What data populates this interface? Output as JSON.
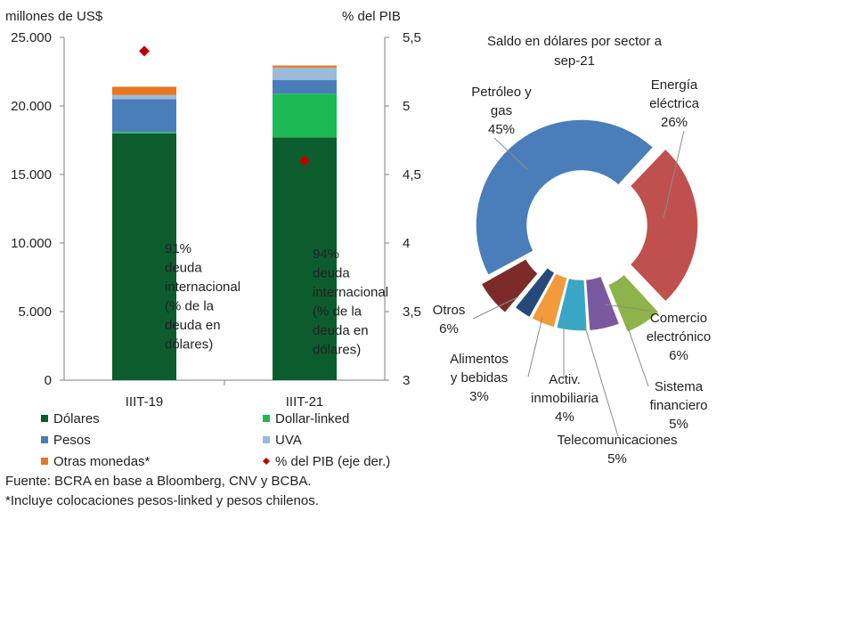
{
  "chart_data": [
    {
      "type": "bar",
      "stacked": true,
      "left_axis_label": "millones de US$",
      "right_axis_label": "% del PIB",
      "categories": [
        "IIIT-19",
        "IIIT-21"
      ],
      "ylim": [
        0,
        25000
      ],
      "y_ticks": [
        "0",
        "5.000",
        "10.000",
        "15.000",
        "20.000",
        "25.000"
      ],
      "y_tick_values": [
        0,
        5000,
        10000,
        15000,
        20000,
        25000
      ],
      "y2lim": [
        3,
        5.5
      ],
      "y2_ticks": [
        "3",
        "3,5",
        "4",
        "4,5",
        "5",
        "5,5"
      ],
      "y2_tick_values": [
        3,
        3.5,
        4,
        4.5,
        5,
        5.5
      ],
      "series": [
        {
          "name": "Dólares",
          "color": "#0d5c2e",
          "values": [
            18000,
            17700
          ]
        },
        {
          "name": "Dollar-linked",
          "color": "#1db954",
          "values": [
            100,
            3200
          ]
        },
        {
          "name": "Pesos",
          "color": "#4a7ebb",
          "values": [
            2400,
            1000
          ]
        },
        {
          "name": "UVA",
          "color": "#9bbbd9",
          "values": [
            300,
            900
          ]
        },
        {
          "name": "Otras monedas*",
          "color": "#e87722",
          "values": [
            600,
            150
          ]
        }
      ],
      "line_series": {
        "name": "% del PIB (eje der.)",
        "color": "#c00000",
        "marker": "diamond",
        "values": [
          5.4,
          4.6
        ]
      },
      "annotations": [
        [
          "91%",
          "deuda",
          "internacional",
          "(% de la",
          "deuda en",
          "dólares)"
        ],
        [
          "94%",
          "deuda",
          "internacional",
          "(% de la",
          "deuda en",
          "dólares)"
        ]
      ],
      "legend_position": "bottom",
      "grid": false
    },
    {
      "type": "pie",
      "donut": true,
      "title_lines": [
        "Saldo en dólares por sector a",
        "sep-21"
      ],
      "slices": [
        {
          "label": [
            "Petróleo y",
            "gas"
          ],
          "pct_label": "45%",
          "value": 45,
          "color": "#4a7ebb",
          "exploded": false
        },
        {
          "label": [
            "Energía",
            "eléctrica"
          ],
          "pct_label": "26%",
          "value": 26,
          "color": "#c0504d",
          "exploded": true
        },
        {
          "label": [
            "Comercio",
            "electrónico"
          ],
          "pct_label": "6%",
          "value": 6,
          "color": "#8db34a",
          "exploded": true
        },
        {
          "label": [
            "Sistema",
            "financiero"
          ],
          "pct_label": "5%",
          "value": 5,
          "color": "#7a59a0",
          "exploded": false
        },
        {
          "label": [
            "Telecomunicaciones"
          ],
          "pct_label": "5%",
          "value": 5,
          "color": "#3aa6c6",
          "exploded": false
        },
        {
          "label": [
            "Activ.",
            "inmobiliaria"
          ],
          "pct_label": "4%",
          "value": 4,
          "color": "#f39a3c",
          "exploded": false
        },
        {
          "label": [
            "Alimentos",
            "y bebidas"
          ],
          "pct_label": "3%",
          "value": 3,
          "color": "#254a7a",
          "exploded": false
        },
        {
          "label": [
            "Otros"
          ],
          "pct_label": "6%",
          "value": 6,
          "color": "#7d2a2a",
          "exploded": true
        }
      ]
    }
  ],
  "footnotes": [
    "Fuente: BCRA en base a Bloomberg, CNV y BCBA.",
    "*Incluye colocaciones pesos-linked y pesos chilenos."
  ]
}
